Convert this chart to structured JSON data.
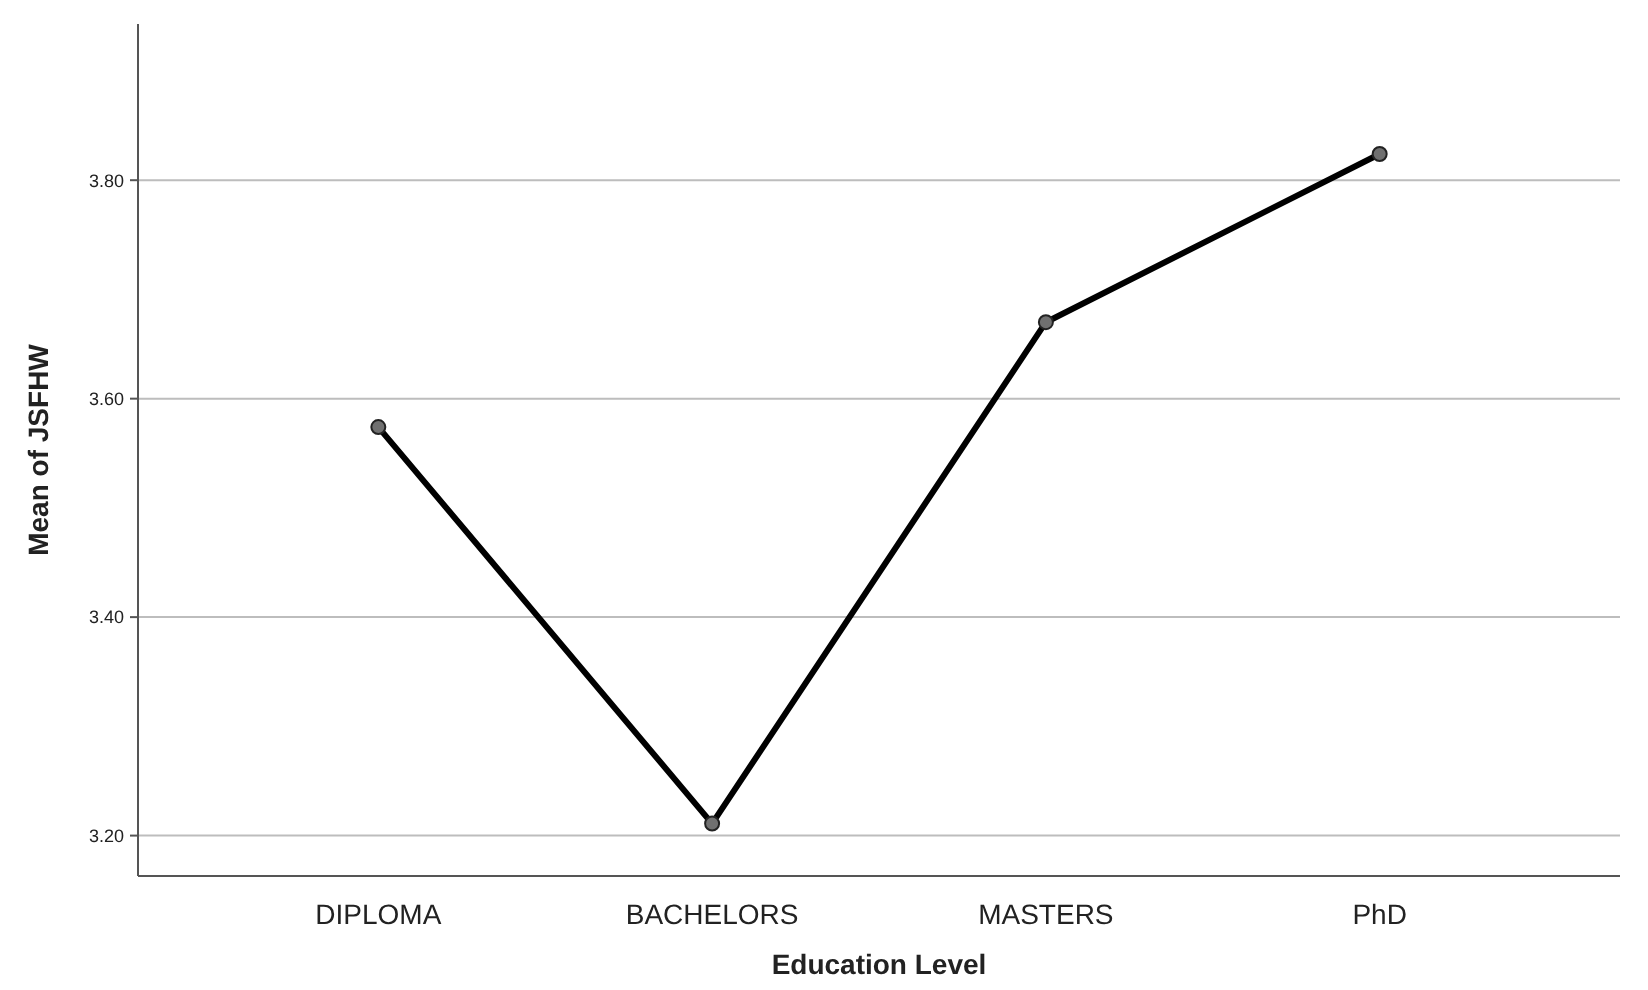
{
  "chart_data": {
    "type": "line",
    "xlabel": "Education Level",
    "ylabel": "Mean of JSFHW",
    "categories": [
      "DIPLOMA",
      "BACHELORS",
      "MASTERS",
      "PhD"
    ],
    "series": [
      {
        "color": "#000000",
        "values": [
          3.574,
          3.211,
          3.67,
          3.824
        ]
      }
    ],
    "ylim": [
      3.163,
      3.943
    ],
    "yticks": [
      {
        "value": 3.2,
        "label": "3.20"
      },
      {
        "value": 3.4,
        "label": "3.40"
      },
      {
        "value": 3.6,
        "label": "3.60"
      },
      {
        "value": 3.8,
        "label": "3.80"
      }
    ],
    "grid": "y",
    "marker": "circle",
    "line_style": "solid"
  }
}
